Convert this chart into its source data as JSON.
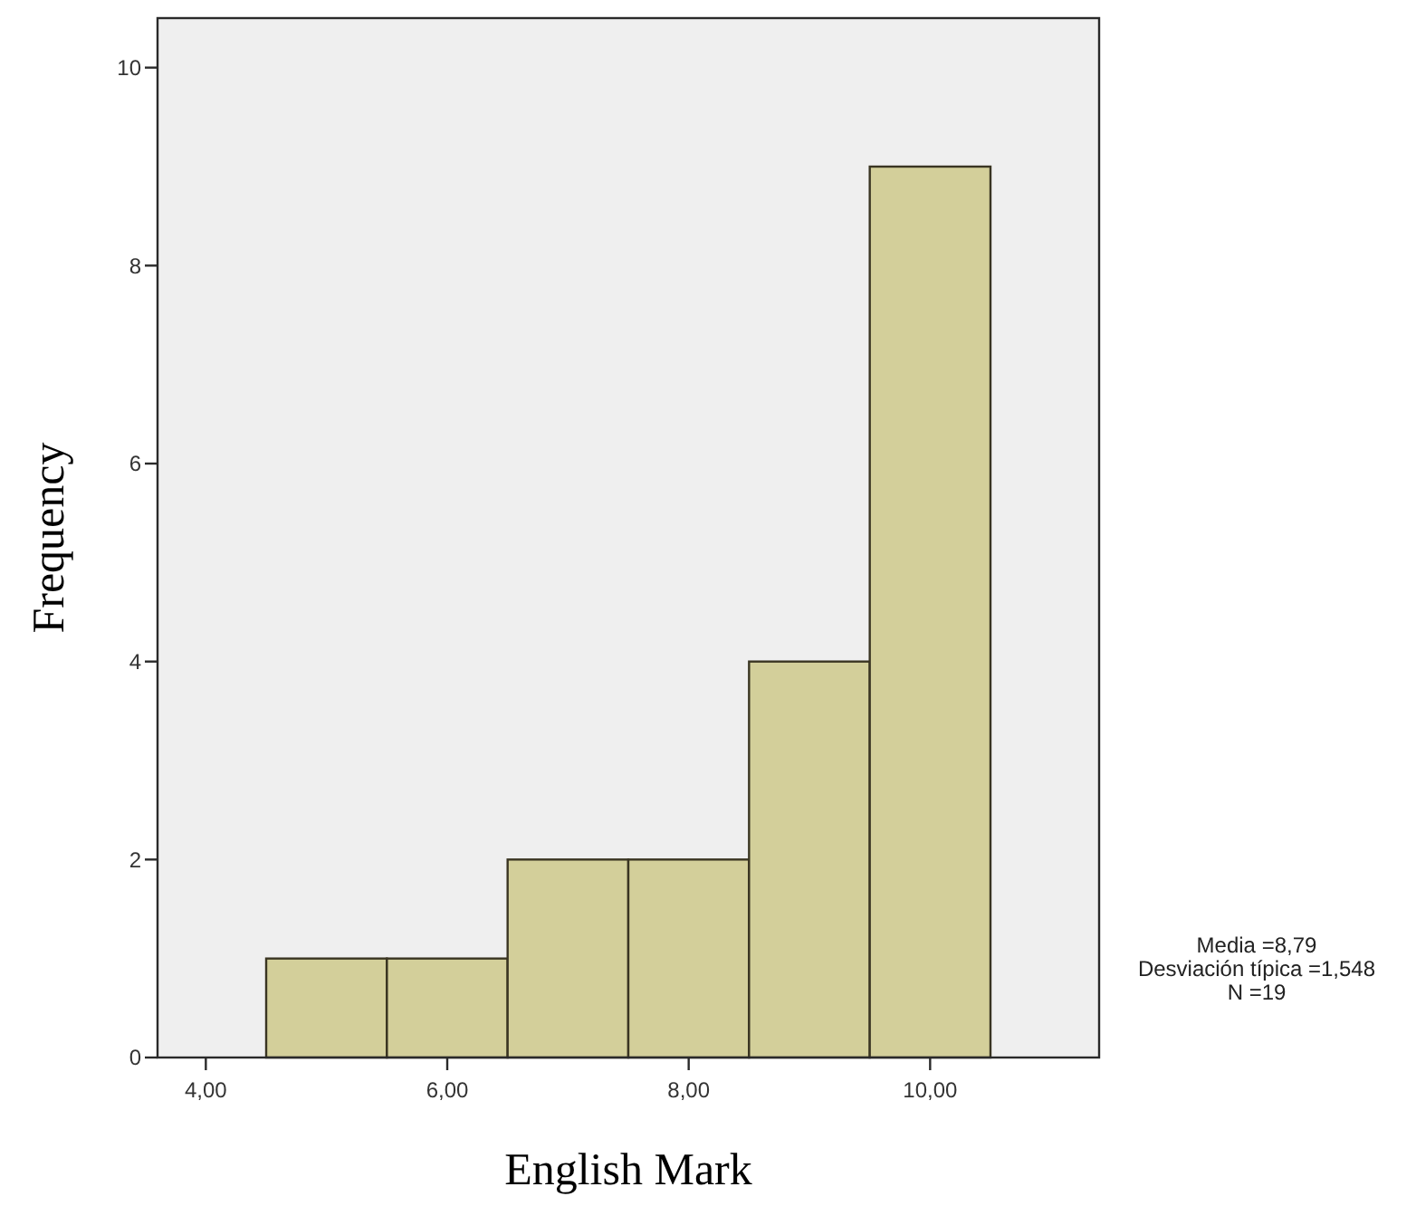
{
  "chart_data": {
    "type": "histogram",
    "xlabel": "English Mark",
    "ylabel": "Frequency",
    "bins": [
      4.5,
      5.5,
      6.5,
      7.5,
      8.5,
      9.5,
      10.5
    ],
    "values": [
      1,
      1,
      2,
      2,
      4,
      9
    ],
    "color": "#d3cf9a",
    "xlim": [
      3.6,
      11.4
    ],
    "ylim": [
      0,
      10.5
    ],
    "xticks": [
      {
        "value": 4,
        "label": "4,00"
      },
      {
        "value": 6,
        "label": "6,00"
      },
      {
        "value": 8,
        "label": "8,00"
      },
      {
        "value": 10,
        "label": "10,00"
      }
    ],
    "yticks": [
      0,
      2,
      4,
      6,
      8,
      10
    ],
    "annotations": [
      "Media =8,79",
      "Desviación típica =1,548",
      "N =19"
    ]
  }
}
